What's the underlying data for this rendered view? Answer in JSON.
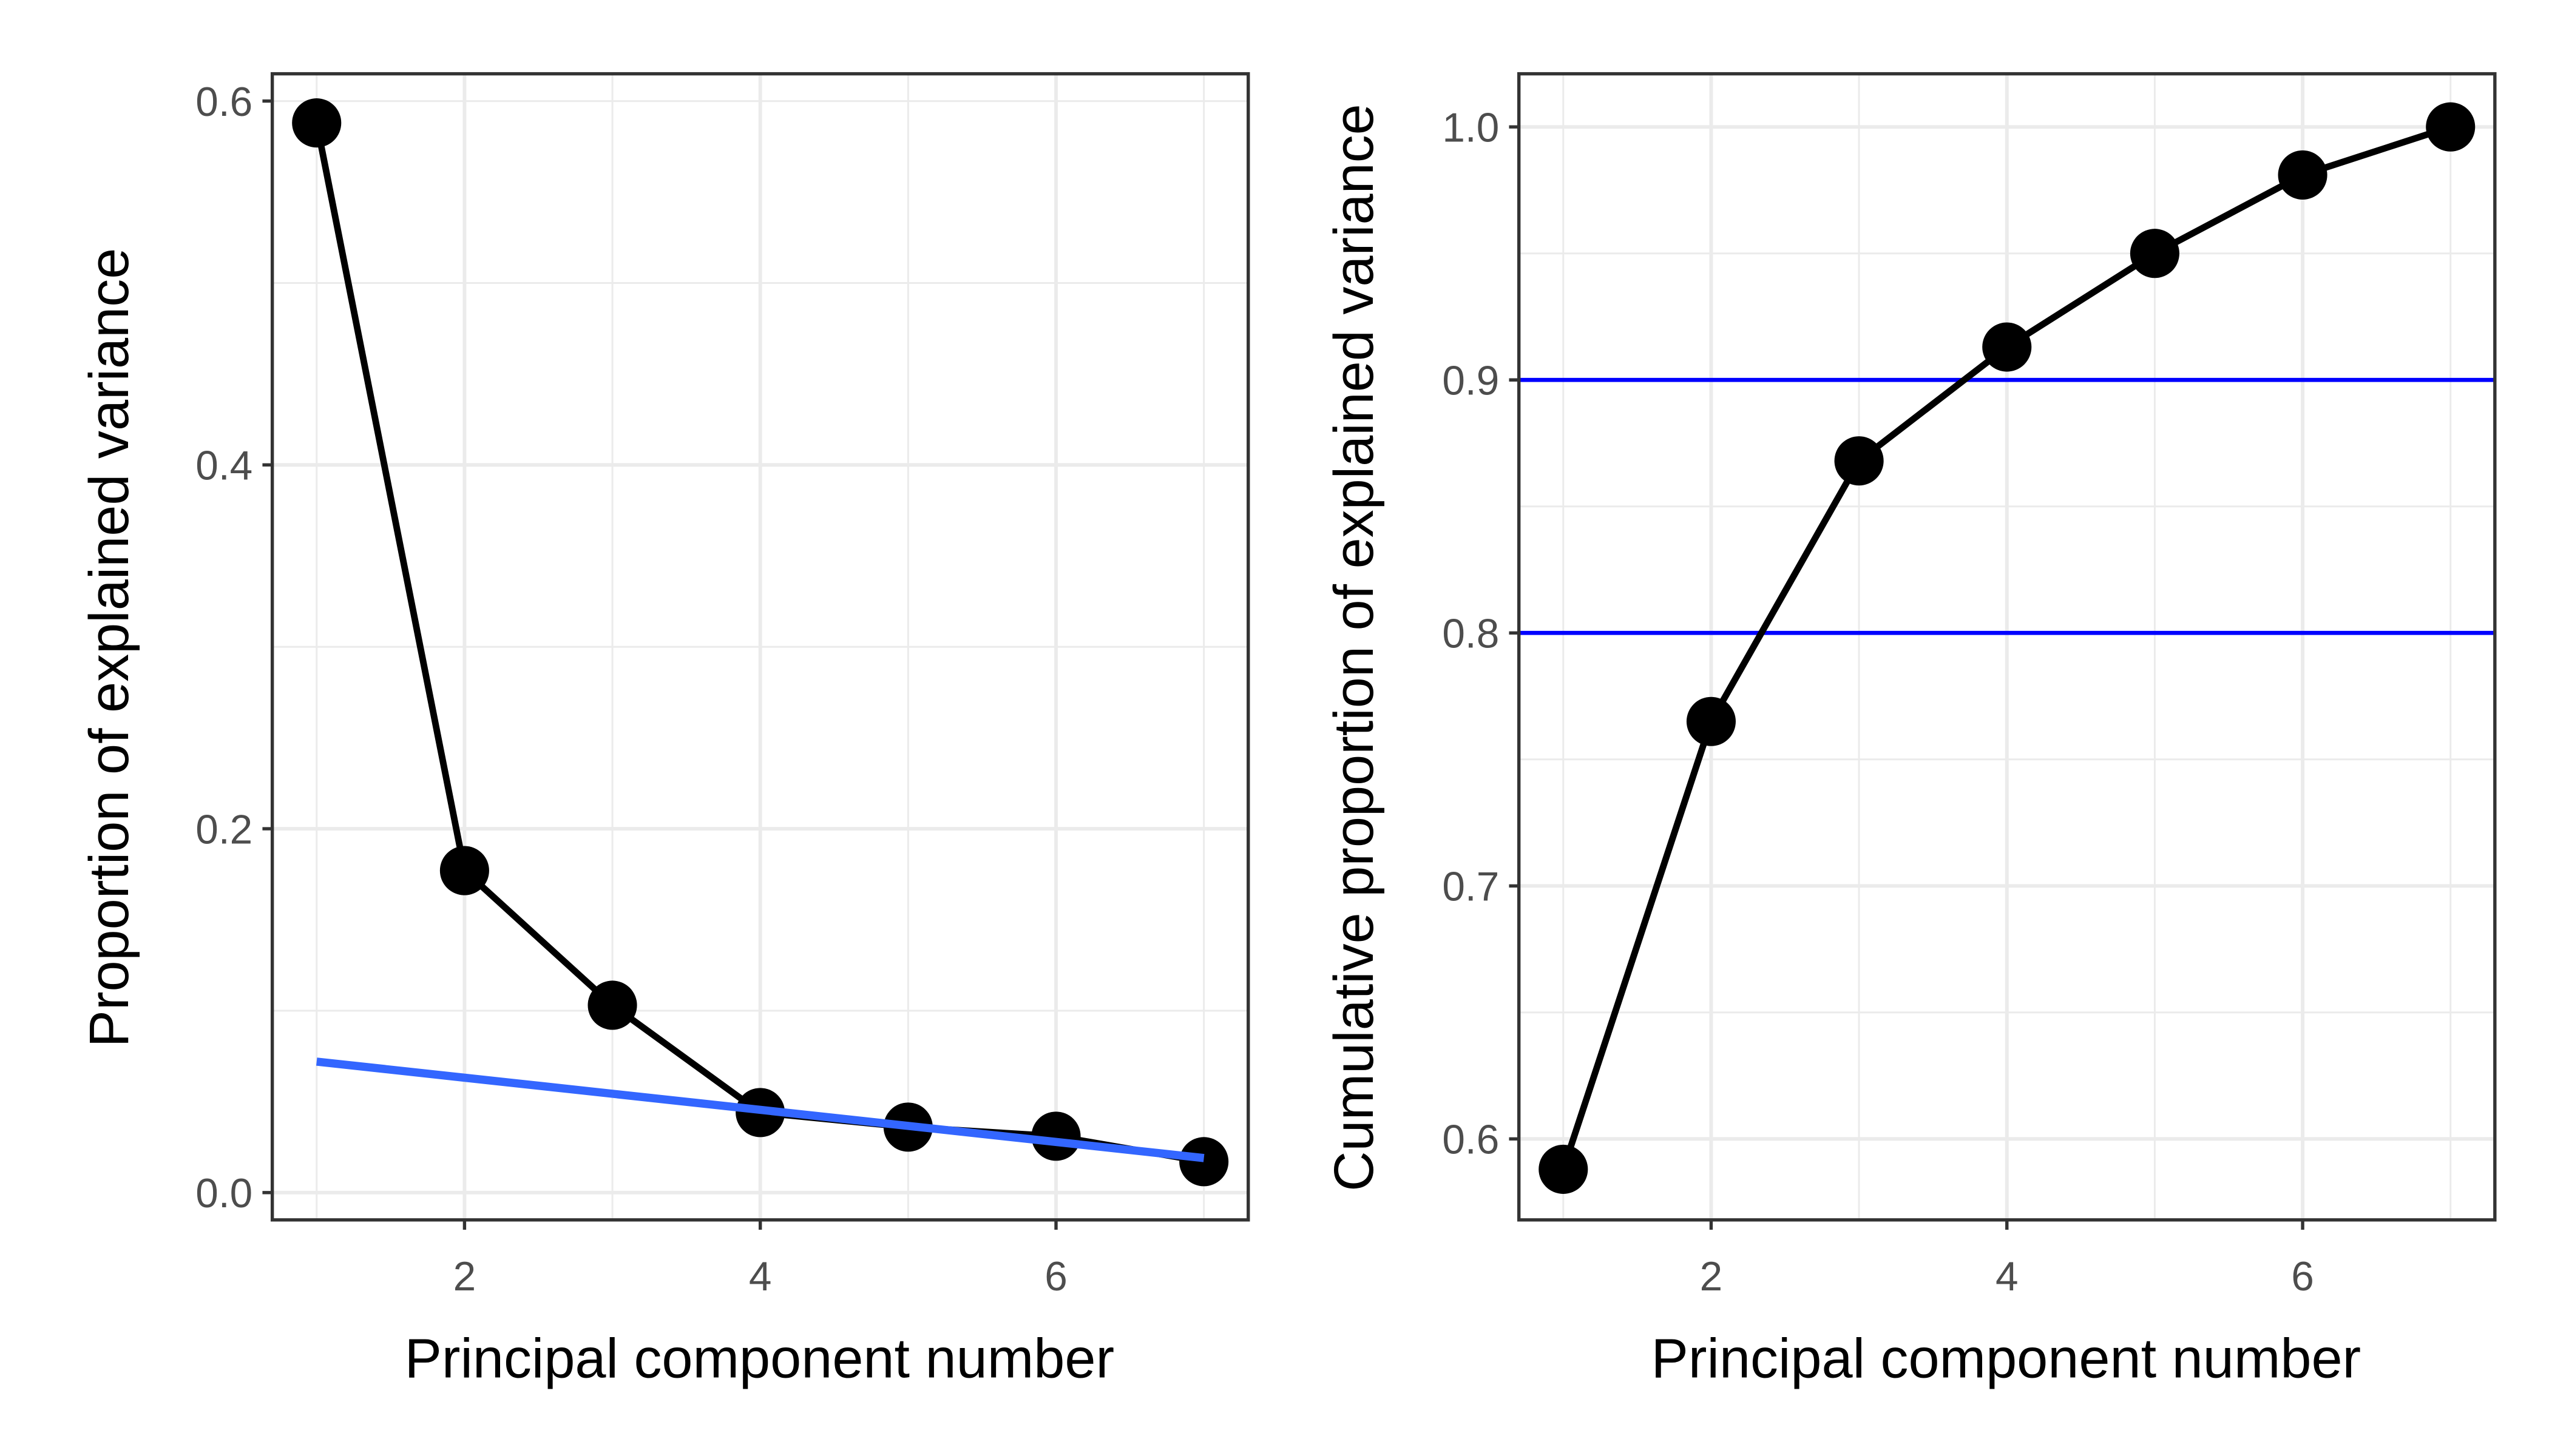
{
  "chart_data": [
    {
      "type": "line",
      "xlabel": "Principal component number",
      "ylabel": "Proportion of explained variance",
      "x": [
        1,
        2,
        3,
        4,
        5,
        6,
        7
      ],
      "values": [
        0.588,
        0.177,
        0.103,
        0.044,
        0.036,
        0.031,
        0.017
      ],
      "xlim": [
        0.7,
        7.3
      ],
      "ylim": [
        -0.015,
        0.615
      ],
      "xticks": [
        "2",
        "4",
        "6"
      ],
      "yticks": [
        "0.0",
        "0.2",
        "0.4",
        "0.6"
      ],
      "grid": true,
      "fit_line": {
        "x": [
          1,
          7
        ],
        "y": [
          0.072,
          0.019
        ],
        "color": "#3366FF"
      },
      "series_color": "#000000"
    },
    {
      "type": "line",
      "xlabel": "Principal component number",
      "ylabel": "Cumulative proportion of explained variance",
      "x": [
        1,
        2,
        3,
        4,
        5,
        6,
        7
      ],
      "values": [
        0.588,
        0.765,
        0.868,
        0.913,
        0.95,
        0.981,
        1.0
      ],
      "xlim": [
        0.7,
        7.3
      ],
      "ylim": [
        0.568,
        1.021
      ],
      "xticks": [
        "2",
        "4",
        "6"
      ],
      "yticks": [
        "0.6",
        "0.7",
        "0.8",
        "0.9",
        "1.0"
      ],
      "grid": true,
      "hlines": [
        0.8,
        0.9
      ],
      "hline_color": "#0000FF",
      "series_color": "#000000"
    }
  ]
}
